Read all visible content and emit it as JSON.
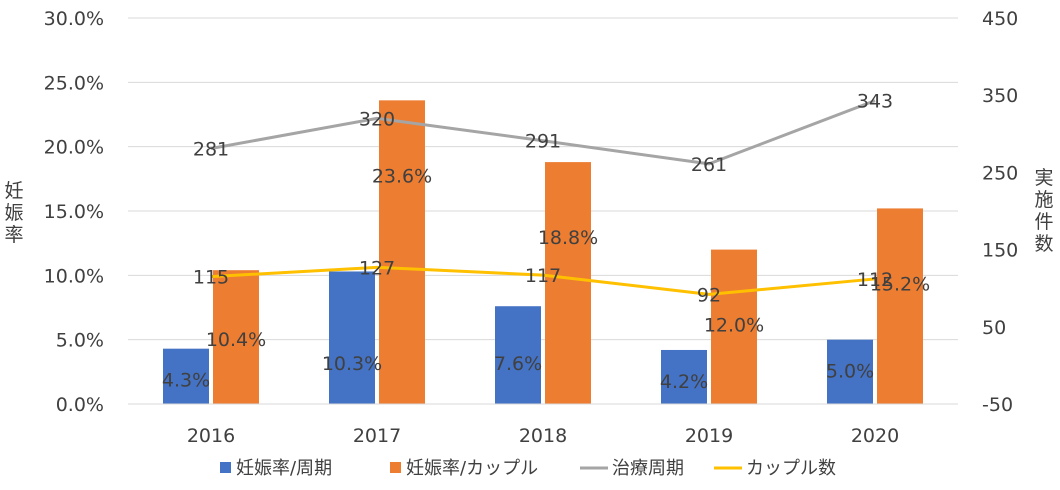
{
  "chart_data": {
    "type": "bar",
    "title": "",
    "categories": [
      "2016",
      "2017",
      "2018",
      "2019",
      "2020"
    ],
    "series": [
      {
        "name": "妊娠率/周期",
        "kind": "bar",
        "axis": "left",
        "color": "#4472C4",
        "values": [
          4.3,
          10.3,
          7.6,
          4.2,
          5.0
        ],
        "labels": [
          "4.3%",
          "10.3%",
          "7.6%",
          "4.2%",
          "5.0%"
        ]
      },
      {
        "name": "妊娠率/カップル",
        "kind": "bar",
        "axis": "left",
        "color": "#ED7D31",
        "values": [
          10.4,
          23.6,
          18.8,
          12.0,
          15.2
        ],
        "labels": [
          "10.4%",
          "23.6%",
          "18.8%",
          "12.0%",
          "15.2%"
        ]
      },
      {
        "name": "治療周期",
        "kind": "line",
        "axis": "right",
        "color": "#A5A5A5",
        "values": [
          281,
          320,
          291,
          261,
          343
        ],
        "labels": [
          "281",
          "320",
          "291",
          "261",
          "343"
        ]
      },
      {
        "name": "カップル数",
        "kind": "line",
        "axis": "right",
        "color": "#FFC000",
        "values": [
          115,
          127,
          117,
          92,
          112
        ],
        "labels": [
          "115",
          "127",
          "117",
          "92",
          "112"
        ]
      }
    ],
    "y_left": {
      "label": "妊娠率",
      "min": 0,
      "max": 30,
      "step": 5,
      "ticks": [
        "0.0%",
        "5.0%",
        "10.0%",
        "15.0%",
        "20.0%",
        "25.0%",
        "30.0%"
      ]
    },
    "y_right": {
      "label": "実施件数",
      "min": -50,
      "max": 450,
      "step": 100,
      "ticks": [
        "-50",
        "50",
        "150",
        "250",
        "350",
        "450"
      ]
    },
    "grid": true,
    "legend": "bottom"
  }
}
